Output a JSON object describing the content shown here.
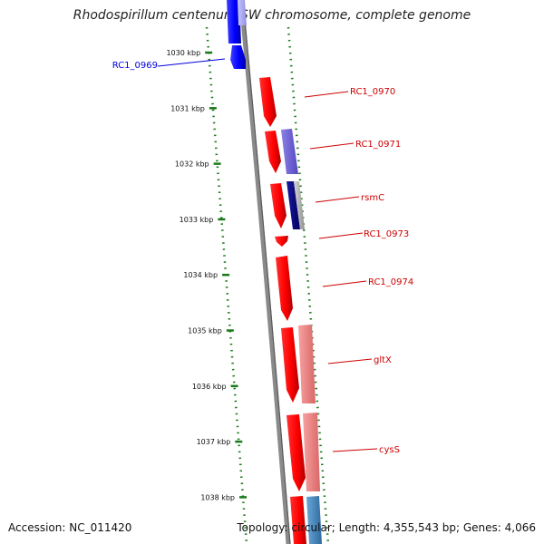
{
  "title": "Rhodospirillum centenum SW chromosome, complete genome",
  "footer": {
    "accession": "Accession: NC_011420",
    "topology": "Topology: circular; Length: 4,355,543 bp; Genes: 4,066"
  },
  "ticks": [
    {
      "kbp": 1030,
      "label": "1030 kbp"
    },
    {
      "kbp": 1031,
      "label": "1031 kbp"
    },
    {
      "kbp": 1032,
      "label": "1032 kbp"
    },
    {
      "kbp": 1033,
      "label": "1033 kbp"
    },
    {
      "kbp": 1034,
      "label": "1034 kbp"
    },
    {
      "kbp": 1035,
      "label": "1035 kbp"
    },
    {
      "kbp": 1036,
      "label": "1036 kbp"
    },
    {
      "kbp": 1037,
      "label": "1037 kbp"
    },
    {
      "kbp": 1038,
      "label": "1038 kbp"
    }
  ],
  "genes": [
    {
      "label": "RC1_0969",
      "color": "#0000dd"
    },
    {
      "label": "RC1_0970",
      "color": "#cc0000"
    },
    {
      "label": "RC1_0971",
      "color": "#cc0000"
    },
    {
      "label": "rsmC",
      "color": "#cc0000"
    },
    {
      "label": "RC1_0973",
      "color": "#cc0000"
    },
    {
      "label": "RC1_0974",
      "color": "#cc0000"
    },
    {
      "label": "gltX",
      "color": "#cc0000"
    },
    {
      "label": "cysS",
      "color": "#cc0000"
    }
  ],
  "colors": {
    "tick_green": "#1a7a1a",
    "backbone": "#888888",
    "forward_gene": "#ff1a1a",
    "reverse_gene": "#1a1aff",
    "feature_purple": "#6a5acd",
    "feature_navy": "#000080",
    "feature_gray": "#b0b0b0",
    "feature_pink": "#f08080",
    "feature_steel": "#4682b4"
  }
}
